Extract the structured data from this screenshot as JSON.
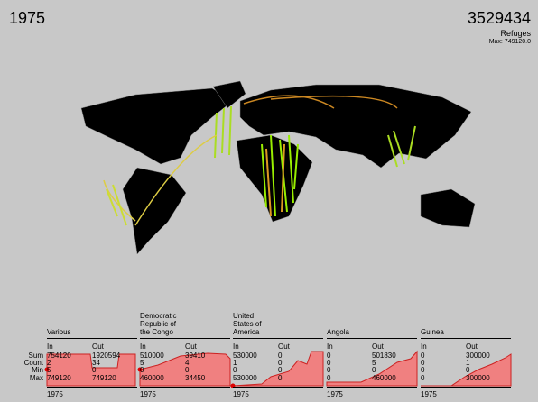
{
  "header": {
    "year": "1975",
    "total": 3529434,
    "label": "Refuges",
    "max": "Max: 749120.0"
  },
  "row_labels": [
    "Sum",
    "Count",
    "Min",
    "Max"
  ],
  "column_labels": [
    "In",
    "Out"
  ],
  "panels": [
    {
      "name": "Various",
      "in": [
        754120,
        2,
        5,
        749120
      ],
      "out": [
        1920594,
        34,
        0,
        749120
      ],
      "year": "1975"
    },
    {
      "name": "Democratic Republic of the Congo",
      "in": [
        510000,
        5,
        0,
        460000
      ],
      "out": [
        39410,
        4,
        0,
        34450
      ],
      "year": "1975"
    },
    {
      "name": "United States of America",
      "in": [
        530000,
        1,
        0,
        530000
      ],
      "out": [
        0,
        0,
        0,
        0
      ],
      "year": "1975"
    },
    {
      "name": "Angola",
      "in": [
        0,
        0,
        0,
        0
      ],
      "out": [
        501830,
        5,
        0,
        460000
      ],
      "year": "1975"
    },
    {
      "name": "Guinea",
      "in": [
        0,
        0,
        0,
        0
      ],
      "out": [
        300000,
        1,
        0,
        300000
      ],
      "year": "1975"
    }
  ]
}
